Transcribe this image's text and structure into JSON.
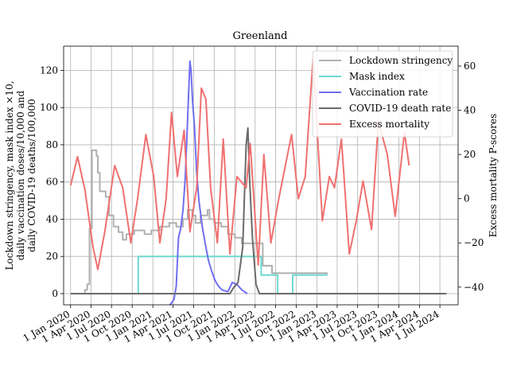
{
  "chart_data": {
    "type": "line",
    "title": "Greenland",
    "ylabel_left": [
      "Lockdown stringency, mask index ×10,",
      "daily vaccination doses/10,000 and",
      "daily COVID-19 deaths/100,000"
    ],
    "ylabel_right": "Excess mortality P-scores",
    "xlim": [
      "2019-12-01",
      "2024-09-20"
    ],
    "ylim_left": [
      -6,
      133
    ],
    "ylim_right": [
      -48,
      69
    ],
    "x_ticks": [
      {
        "date": "2020-01-01",
        "label": "1 Jan 2020"
      },
      {
        "date": "2020-04-01",
        "label": "1 Apr 2020"
      },
      {
        "date": "2020-07-01",
        "label": "1 Jul 2020"
      },
      {
        "date": "2020-10-01",
        "label": "1 Oct 2020"
      },
      {
        "date": "2021-01-01",
        "label": "1 Jan 2021"
      },
      {
        "date": "2021-04-01",
        "label": "1 Apr 2021"
      },
      {
        "date": "2021-07-01",
        "label": "1 Jul 2021"
      },
      {
        "date": "2021-10-01",
        "label": "1 Oct 2021"
      },
      {
        "date": "2022-01-01",
        "label": "1 Jan 2022"
      },
      {
        "date": "2022-04-01",
        "label": "1 Apr 2022"
      },
      {
        "date": "2022-07-01",
        "label": "1 Jul 2022"
      },
      {
        "date": "2022-10-01",
        "label": "1 Oct 2022"
      },
      {
        "date": "2023-01-01",
        "label": "1 Jan 2023"
      },
      {
        "date": "2023-04-01",
        "label": "1 Apr 2023"
      },
      {
        "date": "2023-07-01",
        "label": "1 Jul 2023"
      },
      {
        "date": "2023-10-01",
        "label": "1 Oct 2023"
      },
      {
        "date": "2024-01-01",
        "label": "1 Jan 2024"
      },
      {
        "date": "2024-04-01",
        "label": "1 Apr 2024"
      },
      {
        "date": "2024-07-01",
        "label": "1 Jul 2024"
      }
    ],
    "y_ticks_left": [
      0,
      20,
      40,
      60,
      80,
      100,
      120
    ],
    "y_ticks_right": [
      -40,
      -20,
      0,
      20,
      40,
      60
    ],
    "grid": true,
    "legend_position": "top-right",
    "series": [
      {
        "name": "Lockdown stringency",
        "axis": "left",
        "color": "#b0b0b0",
        "step": true,
        "points": [
          [
            "2020-01-01",
            0
          ],
          [
            "2020-03-05",
            2
          ],
          [
            "2020-03-15",
            5
          ],
          [
            "2020-03-25",
            35
          ],
          [
            "2020-04-05",
            77
          ],
          [
            "2020-04-25",
            74
          ],
          [
            "2020-05-01",
            65
          ],
          [
            "2020-05-10",
            55
          ],
          [
            "2020-06-05",
            52
          ],
          [
            "2020-06-20",
            42
          ],
          [
            "2020-07-10",
            36
          ],
          [
            "2020-08-01",
            33
          ],
          [
            "2020-08-20",
            29
          ],
          [
            "2020-09-05",
            32
          ],
          [
            "2020-10-10",
            34
          ],
          [
            "2020-11-25",
            32
          ],
          [
            "2020-12-25",
            34
          ],
          [
            "2021-02-01",
            36
          ],
          [
            "2021-03-15",
            38
          ],
          [
            "2021-04-15",
            36
          ],
          [
            "2021-05-15",
            40
          ],
          [
            "2021-06-05",
            45
          ],
          [
            "2021-06-25",
            42
          ],
          [
            "2021-07-10",
            38
          ],
          [
            "2021-08-01",
            42
          ],
          [
            "2021-09-01",
            45
          ],
          [
            "2021-09-10",
            40
          ],
          [
            "2021-10-01",
            38
          ],
          [
            "2021-11-01",
            36
          ],
          [
            "2021-12-01",
            32
          ],
          [
            "2022-01-01",
            30
          ],
          [
            "2022-02-01",
            27
          ],
          [
            "2022-05-05",
            15
          ],
          [
            "2022-06-15",
            11
          ],
          [
            "2023-02-15",
            10
          ]
        ]
      },
      {
        "name": "Mask index",
        "axis": "left",
        "color": "#6fd8d2",
        "step": true,
        "points": [
          [
            "2020-01-01",
            0
          ],
          [
            "2020-10-28",
            20
          ],
          [
            "2022-04-28",
            10
          ],
          [
            "2022-07-10",
            0
          ],
          [
            "2022-09-15",
            10
          ],
          [
            "2023-02-15",
            10
          ]
        ]
      },
      {
        "name": "Vaccination rate",
        "axis": "left",
        "color": "#6f6ff0",
        "step": false,
        "points": [
          [
            "2021-03-01",
            -8
          ],
          [
            "2021-03-10",
            -7
          ],
          [
            "2021-03-25",
            -5
          ],
          [
            "2021-04-05",
            -3
          ],
          [
            "2021-04-15",
            4
          ],
          [
            "2021-04-25",
            30
          ],
          [
            "2021-05-05",
            35
          ],
          [
            "2021-05-15",
            45
          ],
          [
            "2021-05-25",
            62
          ],
          [
            "2021-06-05",
            95
          ],
          [
            "2021-06-15",
            125
          ],
          [
            "2021-06-20",
            120
          ],
          [
            "2021-06-27",
            103
          ],
          [
            "2021-07-05",
            90
          ],
          [
            "2021-07-15",
            65
          ],
          [
            "2021-07-25",
            50
          ],
          [
            "2021-08-10",
            35
          ],
          [
            "2021-08-25",
            25
          ],
          [
            "2021-09-05",
            18
          ],
          [
            "2021-09-20",
            12
          ],
          [
            "2021-10-05",
            7
          ],
          [
            "2021-10-20",
            4
          ],
          [
            "2021-11-05",
            2
          ],
          [
            "2021-12-01",
            1
          ],
          [
            "2021-12-20",
            6
          ],
          [
            "2022-01-10",
            5
          ],
          [
            "2022-02-01",
            2
          ],
          [
            "2022-02-25",
            0
          ]
        ]
      },
      {
        "name": "COVID-19 death rate",
        "axis": "left",
        "color": "#6a6a6a",
        "step": false,
        "points": [
          [
            "2020-01-01",
            0
          ],
          [
            "2021-12-10",
            0
          ],
          [
            "2021-12-25",
            3
          ],
          [
            "2022-01-15",
            6
          ],
          [
            "2022-02-05",
            25
          ],
          [
            "2022-02-20",
            80
          ],
          [
            "2022-02-28",
            89
          ],
          [
            "2022-03-08",
            60
          ],
          [
            "2022-03-20",
            30
          ],
          [
            "2022-04-05",
            5
          ],
          [
            "2022-04-20",
            0
          ],
          [
            "2024-07-30",
            0
          ]
        ]
      },
      {
        "name": "Excess mortality",
        "axis": "right",
        "color": "#f07070",
        "step": false,
        "points": [
          [
            "2020-01-01",
            6
          ],
          [
            "2020-02-01",
            19
          ],
          [
            "2020-03-05",
            4
          ],
          [
            "2020-04-10",
            -22
          ],
          [
            "2020-05-01",
            -32
          ],
          [
            "2020-06-01",
            -15
          ],
          [
            "2020-07-15",
            15
          ],
          [
            "2020-08-20",
            5
          ],
          [
            "2020-09-25",
            -20
          ],
          [
            "2020-10-25",
            0
          ],
          [
            "2020-12-01",
            29
          ],
          [
            "2021-01-05",
            10
          ],
          [
            "2021-02-01",
            -20
          ],
          [
            "2021-03-01",
            0
          ],
          [
            "2021-03-25",
            39
          ],
          [
            "2021-04-20",
            10
          ],
          [
            "2021-05-20",
            31
          ],
          [
            "2021-06-15",
            -15
          ],
          [
            "2021-07-15",
            5
          ],
          [
            "2021-08-05",
            50
          ],
          [
            "2021-08-25",
            45
          ],
          [
            "2021-09-15",
            5
          ],
          [
            "2021-10-15",
            -20
          ],
          [
            "2021-11-10",
            27
          ],
          [
            "2021-12-10",
            -25
          ],
          [
            "2022-01-10",
            10
          ],
          [
            "2022-02-20",
            5
          ],
          [
            "2022-03-10",
            25
          ],
          [
            "2022-04-15",
            -30
          ],
          [
            "2022-05-10",
            20
          ],
          [
            "2022-06-10",
            -20
          ],
          [
            "2022-07-15",
            0
          ],
          [
            "2022-09-10",
            29
          ],
          [
            "2022-10-10",
            0
          ],
          [
            "2022-11-10",
            10
          ],
          [
            "2022-12-15",
            64
          ],
          [
            "2023-01-25",
            -10
          ],
          [
            "2023-02-25",
            10
          ],
          [
            "2023-03-20",
            5
          ],
          [
            "2023-04-20",
            27
          ],
          [
            "2023-05-25",
            -25
          ],
          [
            "2023-06-25",
            -10
          ],
          [
            "2023-07-25",
            8
          ],
          [
            "2023-09-01",
            -14
          ],
          [
            "2023-10-01",
            35
          ],
          [
            "2023-11-10",
            20
          ],
          [
            "2023-12-15",
            -8
          ],
          [
            "2024-01-25",
            30
          ],
          [
            "2024-02-15",
            15
          ]
        ]
      }
    ]
  }
}
